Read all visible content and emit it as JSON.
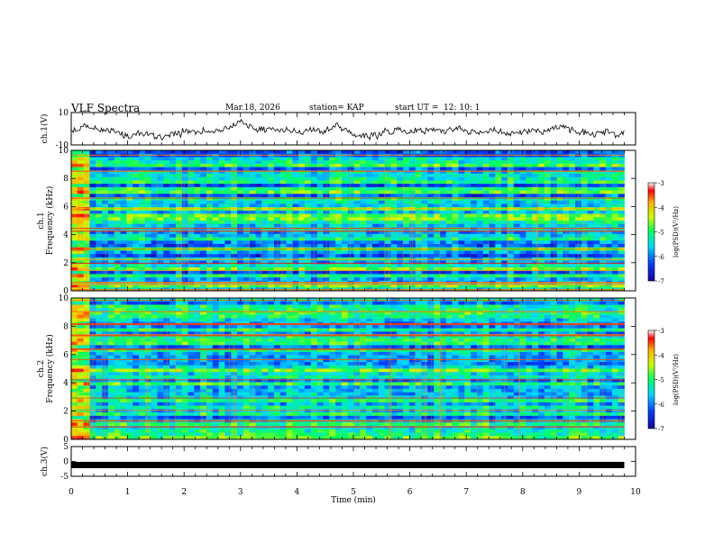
{
  "header": {
    "title": "VLF Spectra",
    "date": "Mar.18, 2026",
    "station": "station= KAP",
    "start_label": "start UT =",
    "start_time": "12: 10: 1"
  },
  "chart_data": [
    {
      "type": "line",
      "name": "ch1-waveform",
      "ylabel": "ch.1(V)",
      "ylim": [
        -10,
        10
      ],
      "y_ticks": [
        "10",
        "-10"
      ],
      "xlim": [
        0,
        10
      ]
    },
    {
      "type": "heatmap",
      "name": "ch1-spectrogram",
      "ylabel_top": "ch.1",
      "ylabel": "Frequency (kHz)",
      "ylim": [
        0,
        10
      ],
      "y_ticks": [
        "0",
        "2",
        "4",
        "6",
        "8",
        "10"
      ],
      "x_data_extent": [
        0,
        9.8
      ],
      "colorbar": {
        "label": "log(PSD)(V²/Hz)",
        "range": [
          -7,
          -3
        ],
        "ticks": [
          "-3",
          "-4",
          "-5",
          "-6",
          "-7"
        ]
      }
    },
    {
      "type": "heatmap",
      "name": "ch2-spectrogram",
      "ylabel_top": "ch.2",
      "ylabel": "Frequency (kHz)",
      "ylim": [
        0,
        10
      ],
      "y_ticks": [
        "0",
        "2",
        "4",
        "6",
        "8",
        "10"
      ],
      "x_data_extent": [
        0,
        9.8
      ],
      "colorbar": {
        "label": "log(PSD)(V²/Hz)",
        "range": [
          -7,
          -3
        ],
        "ticks": [
          "-3",
          "-4",
          "-5",
          "-6",
          "-7"
        ]
      }
    },
    {
      "type": "line",
      "name": "ch3-waveform",
      "ylabel": "ch.3(V)",
      "ylim": [
        -5,
        5
      ],
      "y_ticks": [
        "5",
        "0",
        "-5"
      ],
      "xlim": [
        0,
        10
      ],
      "x_ticks": [
        "0",
        "1",
        "2",
        "3",
        "4",
        "5",
        "6",
        "7",
        "8",
        "9",
        "10"
      ],
      "xlabel": "Time (min)"
    }
  ]
}
